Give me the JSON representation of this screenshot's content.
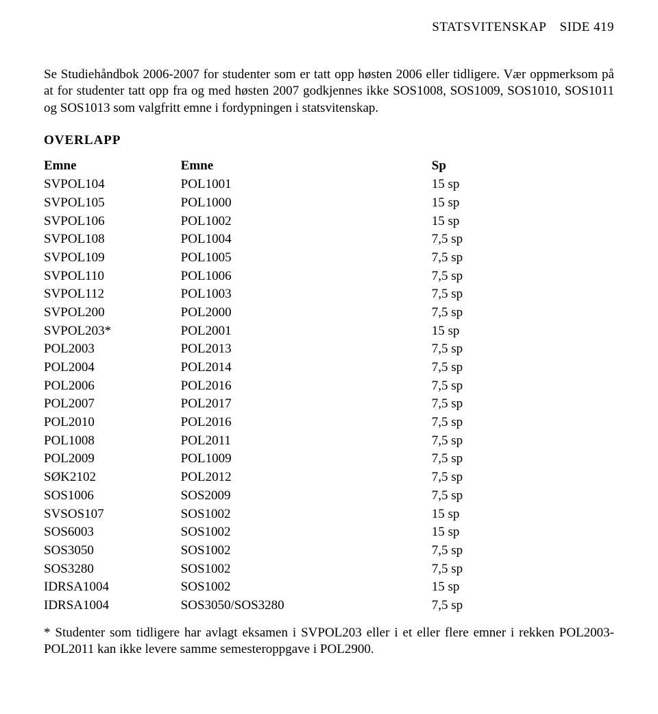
{
  "header": {
    "dept": "STATSVITENSKAP",
    "page_label": "SIDE 419"
  },
  "intro_para1": "Se Studiehåndbok 2006-2007 for studenter som er tatt opp høsten 2006 eller tidligere. Vær oppmerksom på at for studenter tatt opp fra og med høsten 2007 godkjennes ikke SOS1008, SOS1009, SOS1010, SOS1011 og SOS1013 som valgfritt emne i fordypningen i statsvitenskap.",
  "overlap": {
    "heading": "OVERLAPP",
    "columns": [
      "Emne",
      "Emne",
      "Sp"
    ],
    "rows": [
      [
        "SVPOL104",
        "POL1001",
        "15 sp"
      ],
      [
        "SVPOL105",
        "POL1000",
        "15 sp"
      ],
      [
        "SVPOL106",
        "POL1002",
        "15 sp"
      ],
      [
        "SVPOL108",
        "POL1004",
        "7,5 sp"
      ],
      [
        "SVPOL109",
        "POL1005",
        "7,5 sp"
      ],
      [
        "SVPOL110",
        "POL1006",
        "7,5 sp"
      ],
      [
        "SVPOL112",
        "POL1003",
        "7,5 sp"
      ],
      [
        "SVPOL200",
        "POL2000",
        "7,5 sp"
      ],
      [
        "SVPOL203*",
        "POL2001",
        "15 sp"
      ],
      [
        "POL2003",
        "POL2013",
        "7,5 sp"
      ],
      [
        "POL2004",
        "POL2014",
        "7,5 sp"
      ],
      [
        "POL2006",
        "POL2016",
        "7,5 sp"
      ],
      [
        "POL2007",
        "POL2017",
        "7,5 sp"
      ],
      [
        "POL2010",
        "POL2016",
        "7,5 sp"
      ],
      [
        "POL1008",
        "POL2011",
        "7,5 sp"
      ],
      [
        "POL2009",
        "POL1009",
        "7,5 sp"
      ],
      [
        "SØK2102",
        "POL2012",
        "7,5 sp"
      ],
      [
        "SOS1006",
        "SOS2009",
        "7,5 sp"
      ],
      [
        "SVSOS107",
        "SOS1002",
        "15 sp"
      ],
      [
        "SOS6003",
        "SOS1002",
        "15 sp"
      ],
      [
        "SOS3050",
        "SOS1002",
        "7,5 sp"
      ],
      [
        "SOS3280",
        "SOS1002",
        "7,5 sp"
      ],
      [
        "IDRSA1004",
        "SOS1002",
        "15 sp"
      ],
      [
        "IDRSA1004",
        "SOS3050/SOS3280",
        "7,5 sp"
      ]
    ]
  },
  "footnote": "* Studenter som tidligere har avlagt eksamen i SVPOL203 eller i et eller flere emner i rekken POL2003-POL2011 kan ikke levere samme semesteroppgave i POL2900."
}
